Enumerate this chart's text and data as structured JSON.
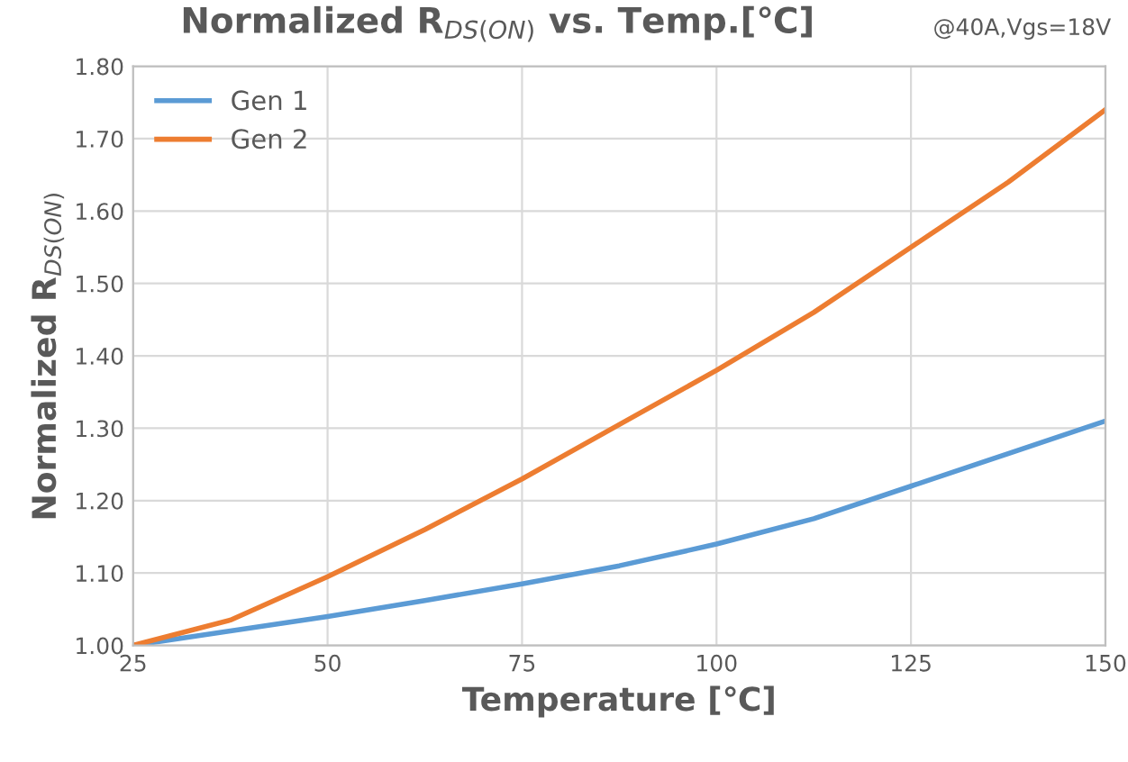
{
  "chart_data": {
    "type": "line",
    "title": "Normalized R$_{DS(ON)}$ vs. Temp.[℃]",
    "subtitle": "@40A,Vgs=18V",
    "xlabel": "Temperature [℃]",
    "ylabel": "Normalized R$_{DS(ON)}$",
    "x": [
      25,
      37.5,
      50,
      62.5,
      75,
      87.5,
      100,
      112.5,
      125,
      137.5,
      150
    ],
    "series": [
      {
        "name": "Gen 1",
        "color": "#5b9bd5",
        "values": [
          1.0,
          1.02,
          1.04,
          1.062,
          1.085,
          1.11,
          1.14,
          1.175,
          1.22,
          1.265,
          1.31
        ]
      },
      {
        "name": "Gen 2",
        "color": "#ed7d31",
        "values": [
          1.0,
          1.035,
          1.095,
          1.16,
          1.23,
          1.305,
          1.38,
          1.46,
          1.55,
          1.64,
          1.74
        ]
      }
    ],
    "xlim": [
      25,
      150
    ],
    "xticks": [
      25,
      50,
      75,
      100,
      125,
      150
    ],
    "ylim": [
      1.0,
      1.8
    ],
    "yticks": [
      {
        "value": 1.0,
        "label": "1.00"
      },
      {
        "value": 1.1,
        "label": "1.10"
      },
      {
        "value": 1.2,
        "label": "1.20"
      },
      {
        "value": 1.3,
        "label": "1.30"
      },
      {
        "value": 1.4,
        "label": "1.40"
      },
      {
        "value": 1.5,
        "label": "1.50"
      },
      {
        "value": 1.6,
        "label": "1.60"
      },
      {
        "value": 1.7,
        "label": "1.70"
      },
      {
        "value": 1.8,
        "label": "1.80"
      }
    ],
    "grid": true,
    "legend": "top left",
    "marker": "none",
    "line_style": "solid"
  }
}
